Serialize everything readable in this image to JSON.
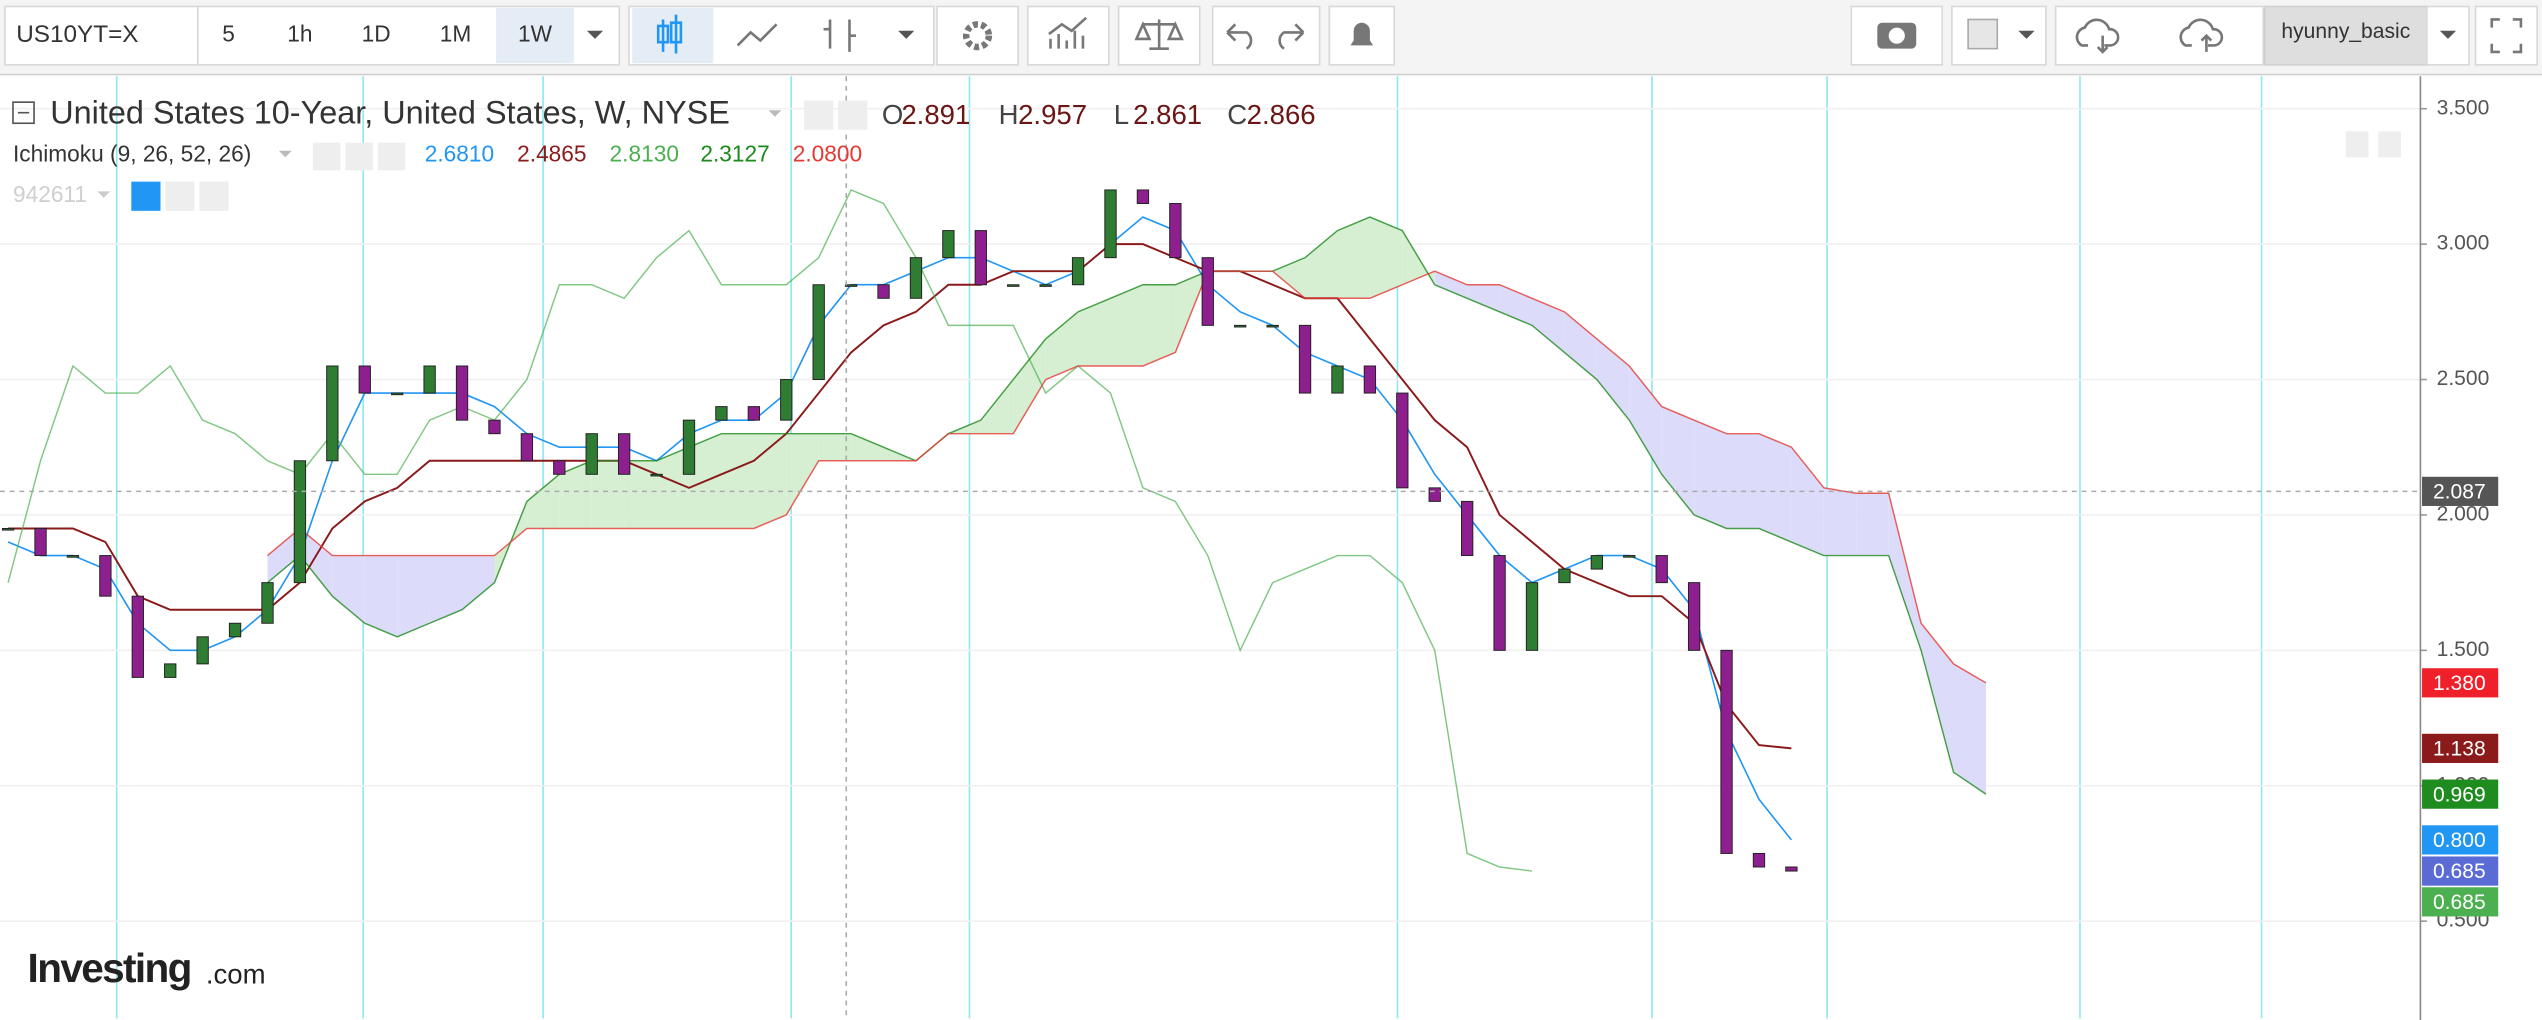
{
  "toolbar": {
    "symbol": "US10YT=X",
    "intervals": [
      "5",
      "1h",
      "1D",
      "1M",
      "1W"
    ],
    "active_interval": 4,
    "user": "hyunny_basic"
  },
  "chart_data": {
    "type": "candlestick",
    "title": "United States 10-Year, United States, W, NYSE",
    "ohlc": {
      "labels": [
        "O",
        "H",
        "L",
        "C"
      ],
      "values": [
        2.891,
        2.957,
        2.861,
        2.866
      ]
    },
    "indicator": {
      "label": "Ichimoku (9, 26, 52, 26)",
      "value_labels": [
        "2.6810",
        "2.4865",
        "2.8130",
        "2.3127",
        "2.0800"
      ]
    },
    "study": "942611",
    "up_color": "#2e7d32",
    "down_color": "#8e1f8e",
    "close": [
      1.95,
      1.85,
      1.85,
      1.7,
      1.4,
      1.45,
      1.55,
      1.6,
      1.75,
      2.2,
      2.55,
      2.45,
      2.45,
      2.55,
      2.35,
      2.3,
      2.2,
      2.15,
      2.3,
      2.15,
      2.15,
      2.35,
      2.4,
      2.35,
      2.5,
      2.85,
      2.85,
      2.8,
      2.95,
      3.05,
      2.85,
      2.85,
      2.85,
      2.95,
      3.2,
      3.15,
      2.95,
      2.7,
      2.7,
      2.7,
      2.45,
      2.55,
      2.45,
      2.1,
      2.05,
      1.85,
      1.5,
      1.75,
      1.8,
      1.85,
      1.85,
      1.75,
      1.5,
      0.75,
      0.7,
      0.685,
      null,
      null,
      null,
      null,
      null,
      null
    ],
    "series": [
      {
        "color": "#2196f3",
        "values": [
          1.9,
          1.85,
          1.85,
          1.8,
          1.6,
          1.5,
          1.5,
          1.55,
          1.65,
          1.85,
          2.2,
          2.45,
          2.45,
          2.45,
          2.45,
          2.4,
          2.3,
          2.25,
          2.25,
          2.25,
          2.2,
          2.3,
          2.35,
          2.35,
          2.45,
          2.7,
          2.85,
          2.85,
          2.9,
          2.95,
          2.95,
          2.9,
          2.85,
          2.9,
          3.0,
          3.1,
          3.05,
          2.85,
          2.75,
          2.7,
          2.6,
          2.55,
          2.5,
          2.35,
          2.15,
          2.0,
          1.85,
          1.75,
          1.8,
          1.85,
          1.85,
          1.8,
          1.65,
          1.2,
          0.95,
          0.8,
          null,
          null,
          null,
          null,
          null,
          null
        ]
      },
      {
        "color": "#8b1a1a",
        "values": [
          1.95,
          1.95,
          1.95,
          1.9,
          1.7,
          1.65,
          1.65,
          1.65,
          1.65,
          1.75,
          1.95,
          2.05,
          2.1,
          2.2,
          2.2,
          2.2,
          2.2,
          2.2,
          2.2,
          2.2,
          2.15,
          2.1,
          2.15,
          2.2,
          2.3,
          2.45,
          2.6,
          2.7,
          2.75,
          2.85,
          2.85,
          2.9,
          2.9,
          2.9,
          3.0,
          3.0,
          2.95,
          2.9,
          2.9,
          2.85,
          2.8,
          2.8,
          2.65,
          2.5,
          2.35,
          2.25,
          2.0,
          1.9,
          1.8,
          1.75,
          1.7,
          1.7,
          1.6,
          1.3,
          1.15,
          1.138,
          null,
          null,
          null,
          null,
          null,
          null
        ]
      },
      {
        "color": "#4caf50",
        "values": [
          1.75,
          2.2,
          2.55,
          2.45,
          2.45,
          2.55,
          2.35,
          2.3,
          2.2,
          2.15,
          2.3,
          2.15,
          2.15,
          2.35,
          2.4,
          2.35,
          2.5,
          2.85,
          2.85,
          2.8,
          2.95,
          3.05,
          2.85,
          2.85,
          2.85,
          2.95,
          3.2,
          3.15,
          2.95,
          2.7,
          2.7,
          2.7,
          2.45,
          2.55,
          2.45,
          2.1,
          2.05,
          1.85,
          1.5,
          1.75,
          1.8,
          1.85,
          1.85,
          1.75,
          1.5,
          0.75,
          0.7,
          0.685,
          null,
          null,
          null,
          null,
          null,
          null,
          null,
          null,
          null,
          null,
          null,
          null,
          null,
          null
        ]
      },
      {
        "color": "#1b8a1b",
        "values": [
          null,
          null,
          null,
          null,
          null,
          null,
          null,
          null,
          1.75,
          1.85,
          1.7,
          1.6,
          1.55,
          1.6,
          1.65,
          1.75,
          2.05,
          2.15,
          2.2,
          2.2,
          2.2,
          2.25,
          2.3,
          2.3,
          2.3,
          2.3,
          2.3,
          2.25,
          2.2,
          2.3,
          2.35,
          2.5,
          2.65,
          2.75,
          2.8,
          2.85,
          2.85,
          2.9,
          2.9,
          2.9,
          2.95,
          3.05,
          3.1,
          3.05,
          2.85,
          2.8,
          2.75,
          2.7,
          2.6,
          2.5,
          2.35,
          2.15,
          2.0,
          1.95,
          1.95,
          1.9,
          1.85,
          1.85,
          1.85,
          1.5,
          1.05,
          0.969
        ]
      },
      {
        "color": "#e53935",
        "values": [
          null,
          null,
          null,
          null,
          null,
          null,
          null,
          null,
          1.85,
          1.95,
          1.85,
          1.85,
          1.85,
          1.85,
          1.85,
          1.85,
          1.95,
          1.95,
          1.95,
          1.95,
          1.95,
          1.95,
          1.95,
          1.95,
          2.0,
          2.2,
          2.2,
          2.2,
          2.2,
          2.3,
          2.3,
          2.3,
          2.5,
          2.55,
          2.55,
          2.55,
          2.6,
          2.9,
          2.9,
          2.9,
          2.8,
          2.8,
          2.8,
          2.85,
          2.9,
          2.85,
          2.85,
          2.8,
          2.75,
          2.65,
          2.55,
          2.4,
          2.35,
          2.3,
          2.3,
          2.25,
          2.1,
          2.08,
          2.08,
          1.6,
          1.45,
          1.38
        ]
      }
    ],
    "cloud_up_color": "#d6eed2",
    "cloud_down_color": "#dcdcfa",
    "ylim": [
      0.141,
      3.62
    ],
    "yticks": [
      {
        "value": 0.5,
        "label": "0.500"
      },
      {
        "value": 1.0,
        "label": "1.000"
      },
      {
        "value": 1.5,
        "label": "1.500"
      },
      {
        "value": 2.0,
        "label": "2.000"
      },
      {
        "value": 2.5,
        "label": "2.500"
      },
      {
        "value": 3.0,
        "label": "3.000"
      },
      {
        "value": 3.5,
        "label": "3.500"
      }
    ],
    "grid": true,
    "crosshair": {
      "value": 2.087,
      "label": "2.087",
      "color": "#555555"
    },
    "price_labels": [
      {
        "value": 1.38,
        "label": "1.380",
        "color": "#f0202a"
      },
      {
        "value": 1.138,
        "label": "1.138",
        "color": "#8b1a1a"
      },
      {
        "value": 0.969,
        "label": "0.969",
        "color": "#1e8c1e"
      },
      {
        "value": 0.8,
        "label": "0.800",
        "color": "#2196f3"
      },
      {
        "value": 0.685,
        "label": "0.685",
        "color": "#5b6bd6"
      },
      {
        "value": 0.685,
        "label": "0.685",
        "color": "#4caf50"
      }
    ]
  },
  "watermark": {
    "brand": "Investing",
    "suffix": ".com"
  }
}
